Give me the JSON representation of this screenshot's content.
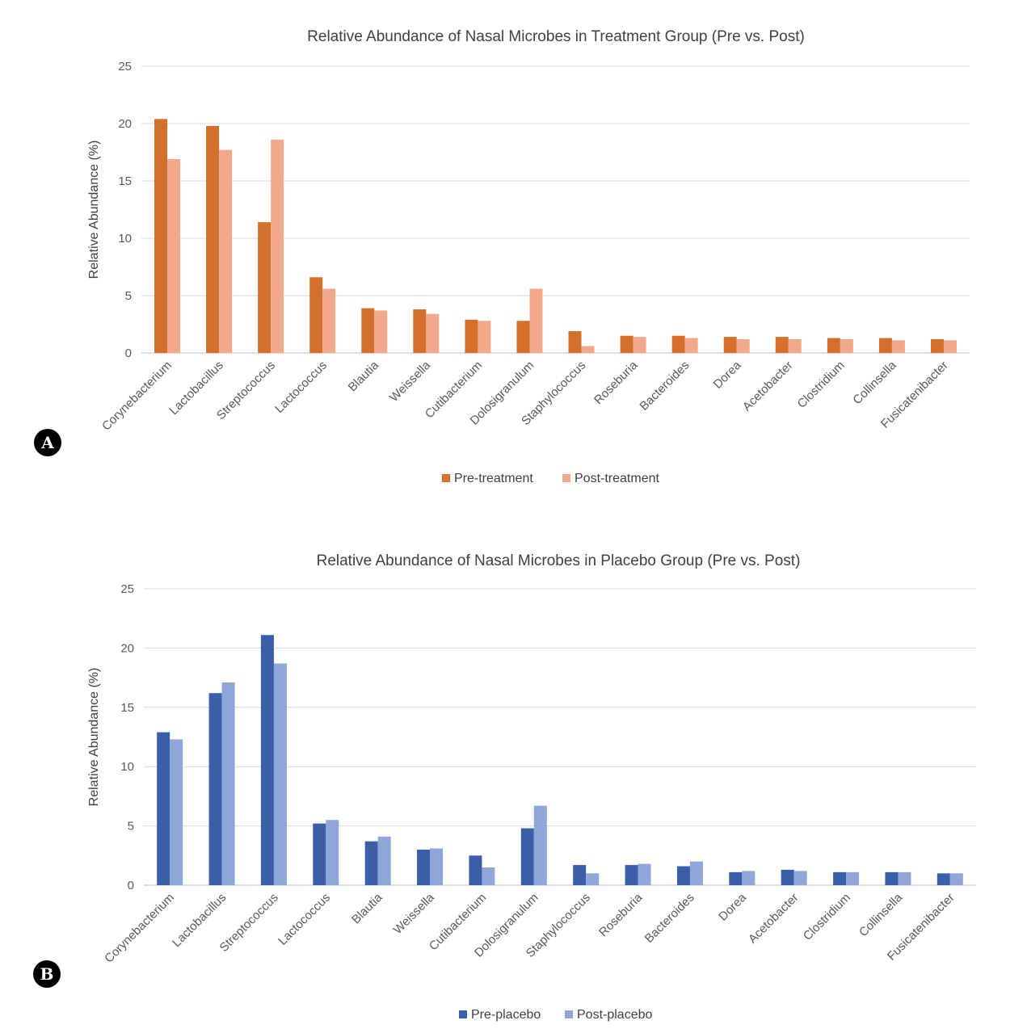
{
  "chart_data": [
    {
      "type": "bar",
      "panel_label": "A",
      "title": "Relative Abundance of Nasal Microbes in Treatment Group (Pre vs. Post)",
      "xlabel": "",
      "ylabel": "Relative Abundance (%)",
      "ylim": [
        0,
        25
      ],
      "yticks": [
        0,
        5,
        10,
        15,
        20,
        25
      ],
      "grid": true,
      "legend_position": "bottom",
      "categories": [
        "Corynebacterium",
        "Lactobacillus",
        "Streptococcus",
        "Lactococcus",
        "Blautia",
        "Weissella",
        "Cutibacterium",
        "Dolosigranulum",
        "Staphylococcus",
        "Roseburia",
        "Bacteroides",
        "Dorea",
        "Acetobacter",
        "Clostridium",
        "Collinsella",
        "Fusicatenibacter"
      ],
      "series": [
        {
          "name": "Pre-treatment",
          "color": "#d4702c",
          "values": [
            20.4,
            19.8,
            11.4,
            6.6,
            3.9,
            3.8,
            2.9,
            2.8,
            1.9,
            1.5,
            1.5,
            1.4,
            1.4,
            1.3,
            1.3,
            1.2
          ]
        },
        {
          "name": "Post-treatment",
          "color": "#f2a98b",
          "values": [
            16.9,
            17.7,
            18.6,
            5.6,
            3.7,
            3.4,
            2.8,
            5.6,
            0.6,
            1.4,
            1.3,
            1.2,
            1.2,
            1.2,
            1.1,
            1.1
          ]
        }
      ]
    },
    {
      "type": "bar",
      "panel_label": "B",
      "title": "Relative Abundance of Nasal Microbes in Placebo Group (Pre vs. Post)",
      "xlabel": "",
      "ylabel": "Relative Abundance (%)",
      "ylim": [
        0,
        25
      ],
      "yticks": [
        0,
        5,
        10,
        15,
        20,
        25
      ],
      "grid": true,
      "legend_position": "bottom",
      "categories": [
        "Corynebacterium",
        "Lactobacillus",
        "Streptococcus",
        "Lactococcus",
        "Blautia",
        "Weissella",
        "Cutibacterium",
        "Dolosigranulum",
        "Staphylococcus",
        "Roseburia",
        "Bacteroides",
        "Dorea",
        "Acetobacter",
        "Clostridium",
        "Collinsella",
        "Fusicatenibacter"
      ],
      "series": [
        {
          "name": "Pre-placebo",
          "color": "#3b5ea8",
          "values": [
            12.9,
            16.2,
            21.1,
            5.2,
            3.7,
            3.0,
            2.5,
            4.8,
            1.7,
            1.7,
            1.6,
            1.1,
            1.3,
            1.1,
            1.1,
            1.0
          ]
        },
        {
          "name": "Post-placebo",
          "color": "#90a6d8",
          "values": [
            12.3,
            17.1,
            18.7,
            5.5,
            4.1,
            3.1,
            1.5,
            6.7,
            1.0,
            1.8,
            2.0,
            1.2,
            1.2,
            1.1,
            1.1,
            1.0
          ]
        }
      ]
    }
  ]
}
